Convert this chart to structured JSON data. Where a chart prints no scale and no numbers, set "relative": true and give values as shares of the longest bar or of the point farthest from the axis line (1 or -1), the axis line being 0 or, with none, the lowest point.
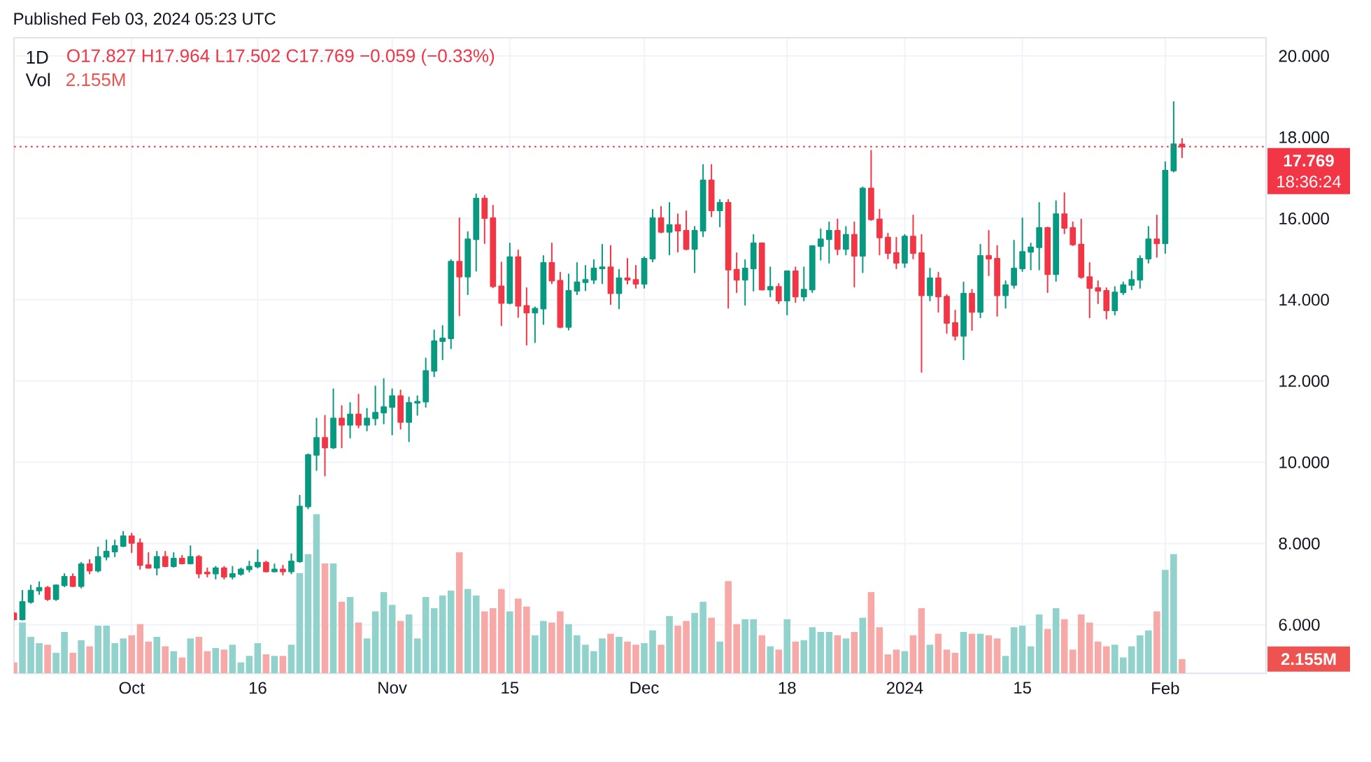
{
  "chart_data": [
    {
      "type": "candlestick",
      "title": "1D",
      "subtitle": "O17.827 H17.964 L17.502 C17.769 −0.059 (−0.33%)",
      "annotations": [
        "Published Feb 03, 2024 05:23 UTC",
        "18:36:24"
      ],
      "x": [
        "2023-09-17",
        "2023-09-18",
        "2023-09-19",
        "2023-09-20",
        "2023-09-21",
        "2023-09-22",
        "2023-09-23",
        "2023-09-24",
        "2023-09-25",
        "2023-09-26",
        "2023-09-27",
        "2023-09-28",
        "2023-09-29",
        "2023-09-30",
        "2023-10-01",
        "2023-10-02",
        "2023-10-03",
        "2023-10-04",
        "2023-10-05",
        "2023-10-06",
        "2023-10-07",
        "2023-10-08",
        "2023-10-09",
        "2023-10-10",
        "2023-10-11",
        "2023-10-12",
        "2023-10-13",
        "2023-10-14",
        "2023-10-15",
        "2023-10-16",
        "2023-10-17",
        "2023-10-18",
        "2023-10-19",
        "2023-10-20",
        "2023-10-21",
        "2023-10-22",
        "2023-10-23",
        "2023-10-24",
        "2023-10-25",
        "2023-10-26",
        "2023-10-27",
        "2023-10-28",
        "2023-10-29",
        "2023-10-30",
        "2023-10-31",
        "2023-11-01",
        "2023-11-02",
        "2023-11-03",
        "2023-11-04",
        "2023-11-05",
        "2023-11-06",
        "2023-11-07",
        "2023-11-08",
        "2023-11-09",
        "2023-11-10",
        "2023-11-11",
        "2023-11-12",
        "2023-11-13",
        "2023-11-14",
        "2023-11-15",
        "2023-11-16",
        "2023-11-17",
        "2023-11-18",
        "2023-11-19",
        "2023-11-20",
        "2023-11-21",
        "2023-11-22",
        "2023-11-23",
        "2023-11-24",
        "2023-11-25",
        "2023-11-26",
        "2023-11-27",
        "2023-11-28",
        "2023-11-29",
        "2023-11-30",
        "2023-12-01",
        "2023-12-02",
        "2023-12-03",
        "2023-12-04",
        "2023-12-05",
        "2023-12-06",
        "2023-12-07",
        "2023-12-08",
        "2023-12-09",
        "2023-12-10",
        "2023-12-11",
        "2023-12-12",
        "2023-12-13",
        "2023-12-14",
        "2023-12-15",
        "2023-12-16",
        "2023-12-17",
        "2023-12-18",
        "2023-12-19",
        "2023-12-20",
        "2023-12-21",
        "2023-12-22",
        "2023-12-23",
        "2023-12-24",
        "2023-12-25",
        "2023-12-26",
        "2023-12-27",
        "2023-12-28",
        "2023-12-29",
        "2023-12-30",
        "2023-12-31",
        "2024-01-01",
        "2024-01-02",
        "2024-01-03",
        "2024-01-04",
        "2024-01-05",
        "2024-01-06",
        "2024-01-07",
        "2024-01-08",
        "2024-01-09",
        "2024-01-10",
        "2024-01-11",
        "2024-01-12",
        "2024-01-13",
        "2024-01-14",
        "2024-01-15",
        "2024-01-16",
        "2024-01-17",
        "2024-01-18",
        "2024-01-19",
        "2024-01-20",
        "2024-01-21",
        "2024-01-22",
        "2024-01-23",
        "2024-01-24",
        "2024-01-25",
        "2024-01-26",
        "2024-01-27",
        "2024-01-28",
        "2024-01-29",
        "2024-01-30",
        "2024-01-31",
        "2024-02-01",
        "2024-02-02",
        "2024-02-03"
      ],
      "ohlc": [
        [
          6.28,
          6.3,
          6.12,
          6.13
        ],
        [
          6.13,
          6.84,
          6.12,
          6.56
        ],
        [
          6.56,
          6.97,
          6.53,
          6.84
        ],
        [
          6.84,
          7.05,
          6.75,
          6.91
        ],
        [
          6.91,
          6.94,
          6.6,
          6.63
        ],
        [
          6.63,
          6.98,
          6.6,
          6.97
        ],
        [
          6.97,
          7.25,
          6.94,
          7.18
        ],
        [
          7.18,
          7.25,
          6.94,
          6.95
        ],
        [
          6.95,
          7.53,
          6.91,
          7.49
        ],
        [
          7.49,
          7.6,
          7.26,
          7.33
        ],
        [
          7.33,
          7.91,
          7.3,
          7.67
        ],
        [
          7.67,
          8.08,
          7.6,
          7.8
        ],
        [
          7.8,
          8.08,
          7.68,
          7.94
        ],
        [
          7.94,
          8.29,
          7.92,
          8.18
        ],
        [
          8.18,
          8.25,
          7.78,
          8.01
        ],
        [
          8.01,
          8.11,
          7.37,
          7.47
        ],
        [
          7.47,
          7.77,
          7.39,
          7.4
        ],
        [
          7.4,
          7.8,
          7.23,
          7.67
        ],
        [
          7.67,
          7.8,
          7.43,
          7.44
        ],
        [
          7.44,
          7.77,
          7.42,
          7.63
        ],
        [
          7.63,
          7.7,
          7.5,
          7.51
        ],
        [
          7.51,
          7.94,
          7.5,
          7.67
        ],
        [
          7.67,
          7.7,
          7.16,
          7.26
        ],
        [
          7.29,
          7.39,
          7.18,
          7.26
        ],
        [
          7.26,
          7.43,
          7.13,
          7.39
        ],
        [
          7.39,
          7.43,
          7.13,
          7.18
        ],
        [
          7.18,
          7.43,
          7.13,
          7.25
        ],
        [
          7.25,
          7.39,
          7.22,
          7.36
        ],
        [
          7.36,
          7.56,
          7.3,
          7.43
        ],
        [
          7.43,
          7.84,
          7.4,
          7.53
        ],
        [
          7.53,
          7.56,
          7.3,
          7.31
        ],
        [
          7.31,
          7.49,
          7.3,
          7.36
        ],
        [
          7.36,
          7.46,
          7.23,
          7.31
        ],
        [
          7.31,
          7.74,
          7.26,
          7.56
        ],
        [
          7.56,
          9.18,
          7.54,
          8.91
        ],
        [
          8.91,
          10.2,
          8.86,
          10.18
        ],
        [
          10.18,
          11.08,
          9.8,
          10.6
        ],
        [
          10.6,
          11.15,
          9.67,
          10.36
        ],
        [
          10.36,
          11.8,
          10.34,
          11.08
        ],
        [
          11.08,
          11.39,
          10.36,
          10.92
        ],
        [
          10.92,
          11.46,
          10.6,
          11.18
        ],
        [
          11.18,
          11.67,
          10.85,
          10.92
        ],
        [
          10.92,
          11.32,
          10.78,
          11.08
        ],
        [
          11.08,
          11.87,
          10.92,
          11.22
        ],
        [
          11.22,
          12.05,
          10.95,
          11.36
        ],
        [
          11.36,
          11.8,
          10.68,
          11.63
        ],
        [
          11.63,
          11.77,
          10.82,
          10.99
        ],
        [
          10.99,
          11.6,
          10.51,
          11.46
        ],
        [
          11.46,
          11.63,
          11.16,
          11.49
        ],
        [
          11.49,
          12.56,
          11.36,
          12.25
        ],
        [
          12.25,
          13.25,
          12.11,
          12.98
        ],
        [
          12.98,
          13.36,
          12.53,
          13.05
        ],
        [
          13.05,
          14.98,
          12.8,
          14.94
        ],
        [
          14.94,
          16.01,
          13.61,
          14.57
        ],
        [
          14.57,
          15.67,
          14.13,
          15.49
        ],
        [
          15.49,
          16.6,
          14.71,
          16.49
        ],
        [
          16.49,
          16.56,
          15.39,
          16.01
        ],
        [
          16.01,
          16.32,
          14.3,
          14.33
        ],
        [
          14.33,
          14.92,
          13.37,
          13.92
        ],
        [
          13.92,
          15.39,
          13.9,
          15.05
        ],
        [
          15.05,
          15.22,
          13.57,
          13.85
        ],
        [
          13.85,
          14.29,
          12.89,
          13.68
        ],
        [
          13.68,
          13.82,
          12.95,
          13.78
        ],
        [
          13.78,
          15.08,
          13.4,
          14.91
        ],
        [
          14.91,
          15.39,
          14.4,
          14.47
        ],
        [
          14.47,
          14.67,
          13.31,
          13.33
        ],
        [
          13.33,
          14.63,
          13.26,
          14.22
        ],
        [
          14.22,
          14.91,
          14.13,
          14.43
        ],
        [
          14.43,
          14.84,
          14.23,
          14.49
        ],
        [
          14.49,
          14.98,
          14.4,
          14.77
        ],
        [
          14.77,
          15.36,
          14.4,
          14.8
        ],
        [
          14.8,
          15.33,
          13.89,
          14.16
        ],
        [
          14.16,
          14.74,
          13.78,
          14.53
        ],
        [
          14.53,
          15.01,
          14.39,
          14.49
        ],
        [
          14.49,
          14.84,
          14.29,
          14.39
        ],
        [
          14.39,
          15.05,
          14.29,
          15.01
        ],
        [
          15.01,
          16.22,
          14.94,
          16.01
        ],
        [
          16.01,
          16.29,
          15.65,
          15.67
        ],
        [
          15.67,
          16.39,
          15.11,
          15.84
        ],
        [
          15.84,
          16.11,
          15.18,
          15.7
        ],
        [
          15.7,
          16.18,
          15.23,
          15.25
        ],
        [
          15.25,
          15.8,
          14.67,
          15.7
        ],
        [
          15.7,
          17.32,
          15.56,
          16.94
        ],
        [
          16.94,
          17.32,
          16.05,
          16.2
        ],
        [
          16.2,
          16.46,
          15.8,
          16.39
        ],
        [
          16.39,
          16.46,
          13.8,
          14.74
        ],
        [
          14.74,
          15.15,
          14.18,
          14.49
        ],
        [
          14.49,
          14.98,
          13.87,
          14.77
        ],
        [
          14.77,
          15.6,
          14.22,
          15.39
        ],
        [
          15.39,
          15.4,
          14.24,
          14.25
        ],
        [
          14.25,
          14.8,
          14.08,
          14.32
        ],
        [
          14.32,
          14.39,
          13.91,
          13.98
        ],
        [
          13.98,
          14.71,
          13.63,
          14.7
        ],
        [
          14.7,
          14.8,
          13.94,
          14.08
        ],
        [
          14.08,
          14.8,
          13.98,
          14.25
        ],
        [
          14.25,
          15.33,
          14.18,
          15.32
        ],
        [
          15.32,
          15.74,
          14.98,
          15.49
        ],
        [
          15.49,
          15.91,
          14.91,
          15.7
        ],
        [
          15.7,
          15.98,
          15.11,
          15.25
        ],
        [
          15.25,
          15.8,
          15.11,
          15.6
        ],
        [
          15.6,
          15.91,
          14.32,
          15.08
        ],
        [
          15.08,
          16.77,
          14.67,
          16.74
        ],
        [
          16.74,
          17.67,
          15.96,
          15.98
        ],
        [
          15.98,
          16.22,
          15.11,
          15.53
        ],
        [
          15.53,
          15.63,
          15.01,
          15.15
        ],
        [
          15.15,
          15.53,
          14.77,
          14.91
        ],
        [
          14.91,
          15.6,
          14.8,
          15.56
        ],
        [
          15.56,
          16.08,
          15.01,
          15.15
        ],
        [
          15.15,
          15.6,
          12.22,
          14.11
        ],
        [
          14.11,
          14.77,
          13.98,
          14.53
        ],
        [
          14.53,
          14.67,
          13.7,
          14.08
        ],
        [
          14.08,
          14.12,
          13.18,
          13.43
        ],
        [
          13.43,
          13.74,
          13.01,
          13.11
        ],
        [
          13.11,
          14.43,
          12.53,
          14.15
        ],
        [
          14.15,
          14.25,
          13.25,
          13.7
        ],
        [
          13.7,
          15.36,
          13.56,
          15.08
        ],
        [
          15.08,
          15.7,
          14.6,
          15.01
        ],
        [
          15.01,
          15.33,
          13.6,
          14.11
        ],
        [
          14.11,
          14.46,
          13.8,
          14.36
        ],
        [
          14.36,
          15.46,
          14.29,
          14.77
        ],
        [
          14.77,
          16.01,
          14.7,
          15.18
        ],
        [
          15.18,
          15.39,
          14.74,
          15.29
        ],
        [
          15.29,
          16.39,
          14.74,
          15.77
        ],
        [
          15.77,
          15.78,
          14.18,
          14.63
        ],
        [
          14.63,
          16.43,
          14.46,
          16.11
        ],
        [
          16.11,
          16.63,
          15.63,
          15.77
        ],
        [
          15.77,
          15.91,
          15.34,
          15.36
        ],
        [
          15.36,
          15.98,
          14.53,
          14.56
        ],
        [
          14.56,
          14.91,
          13.56,
          14.29
        ],
        [
          14.29,
          14.46,
          13.91,
          14.22
        ],
        [
          14.22,
          14.29,
          13.53,
          13.74
        ],
        [
          13.74,
          14.32,
          13.63,
          14.18
        ],
        [
          14.18,
          14.43,
          14.13,
          14.36
        ],
        [
          14.36,
          14.7,
          14.25,
          14.49
        ],
        [
          14.49,
          15.08,
          14.29,
          15.01
        ],
        [
          15.01,
          15.8,
          14.91,
          15.49
        ],
        [
          15.49,
          16.08,
          15.05,
          15.39
        ],
        [
          15.39,
          17.39,
          15.15,
          17.18
        ],
        [
          17.18,
          18.87,
          17.15,
          17.83
        ],
        [
          17.827,
          17.964,
          17.502,
          17.769
        ]
      ],
      "colors": [
        "#f23645",
        "#089981",
        "#089981",
        "#089981",
        "#f23645",
        "#089981",
        "#089981",
        "#f23645",
        "#089981",
        "#f23645",
        "#089981",
        "#089981",
        "#089981",
        "#089981",
        "#f23645",
        "#f23645",
        "#f23645",
        "#089981",
        "#f23645",
        "#089981",
        "#f23645",
        "#089981",
        "#f23645",
        "#f23645",
        "#089981",
        "#f23645",
        "#089981",
        "#089981",
        "#089981",
        "#089981",
        "#f23645",
        "#089981",
        "#f23645",
        "#089981",
        "#089981",
        "#089981",
        "#089981",
        "#f23645",
        "#089981",
        "#f23645",
        "#089981",
        "#f23645",
        "#089981",
        "#089981",
        "#089981",
        "#089981",
        "#f23645",
        "#089981",
        "#089981",
        "#089981",
        "#089981",
        "#089981",
        "#089981",
        "#f23645",
        "#089981",
        "#089981",
        "#f23645",
        "#f23645",
        "#f23645",
        "#089981",
        "#f23645",
        "#f23645",
        "#089981",
        "#089981",
        "#f23645",
        "#f23645",
        "#089981",
        "#089981",
        "#089981",
        "#089981",
        "#089981",
        "#f23645",
        "#089981",
        "#f23645",
        "#f23645",
        "#089981",
        "#089981",
        "#f23645",
        "#089981",
        "#f23645",
        "#f23645",
        "#089981",
        "#089981",
        "#f23645",
        "#089981",
        "#f23645",
        "#f23645",
        "#089981",
        "#089981",
        "#f23645",
        "#089981",
        "#f23645",
        "#089981",
        "#f23645",
        "#089981",
        "#089981",
        "#089981",
        "#089981",
        "#f23645",
        "#089981",
        "#f23645",
        "#089981",
        "#f23645",
        "#f23645",
        "#f23645",
        "#f23645",
        "#089981",
        "#f23645",
        "#f23645",
        "#089981",
        "#f23645",
        "#f23645",
        "#f23645",
        "#089981",
        "#f23645",
        "#089981",
        "#f23645",
        "#f23645",
        "#089981",
        "#089981",
        "#089981",
        "#089981",
        "#089981",
        "#f23645",
        "#089981",
        "#f23645",
        "#f23645",
        "#f23645",
        "#f23645",
        "#f23645",
        "#f23645",
        "#089981",
        "#089981",
        "#089981",
        "#089981",
        "#089981",
        "#f23645",
        "#089981",
        "#089981",
        "#f23645"
      ],
      "xlim": [
        "2023-09-17",
        "2024-02-13"
      ],
      "xticks": [
        {
          "value": "2023-10-01",
          "label": "Oct"
        },
        {
          "value": "2023-10-16",
          "label": "16"
        },
        {
          "value": "2023-11-01",
          "label": "Nov"
        },
        {
          "value": "2023-11-15",
          "label": "15"
        },
        {
          "value": "2023-12-01",
          "label": "Dec"
        },
        {
          "value": "2023-12-18",
          "label": "18"
        },
        {
          "value": "2024-01-01",
          "label": "2024"
        },
        {
          "value": "2024-01-15",
          "label": "15"
        },
        {
          "value": "2024-02-01",
          "label": "Feb"
        }
      ],
      "ylim": [
        4.8,
        20.45
      ],
      "yticks": [
        {
          "value": 6,
          "label": "6.000"
        },
        {
          "value": 8,
          "label": "8.000"
        },
        {
          "value": 10,
          "label": "10.000"
        },
        {
          "value": 12,
          "label": "12.000"
        },
        {
          "value": 14,
          "label": "14.000"
        },
        {
          "value": 16,
          "label": "16.000"
        },
        {
          "value": 18,
          "label": "18.000"
        },
        {
          "value": 20,
          "label": "20.000"
        }
      ],
      "ref_lines": [
        {
          "axis": "y",
          "value": 17.769,
          "label": "17.769",
          "color": "#f23645",
          "line_style": "dotted"
        }
      ],
      "grid": true
    },
    {
      "type": "bar",
      "relative": true,
      "title": "Vol",
      "annotations": [
        "2.155M",
        "2.155M"
      ],
      "x": [
        "2023-09-17",
        "2023-09-18",
        "2023-09-19",
        "2023-09-20",
        "2023-09-21",
        "2023-09-22",
        "2023-09-23",
        "2023-09-24",
        "2023-09-25",
        "2023-09-26",
        "2023-09-27",
        "2023-09-28",
        "2023-09-29",
        "2023-09-30",
        "2023-10-01",
        "2023-10-02",
        "2023-10-03",
        "2023-10-04",
        "2023-10-05",
        "2023-10-06",
        "2023-10-07",
        "2023-10-08",
        "2023-10-09",
        "2023-10-10",
        "2023-10-11",
        "2023-10-12",
        "2023-10-13",
        "2023-10-14",
        "2023-10-15",
        "2023-10-16",
        "2023-10-17",
        "2023-10-18",
        "2023-10-19",
        "2023-10-20",
        "2023-10-21",
        "2023-10-22",
        "2023-10-23",
        "2023-10-24",
        "2023-10-25",
        "2023-10-26",
        "2023-10-27",
        "2023-10-28",
        "2023-10-29",
        "2023-10-30",
        "2023-10-31",
        "2023-11-01",
        "2023-11-02",
        "2023-11-03",
        "2023-11-04",
        "2023-11-05",
        "2023-11-06",
        "2023-11-07",
        "2023-11-08",
        "2023-11-09",
        "2023-11-10",
        "2023-11-11",
        "2023-11-12",
        "2023-11-13",
        "2023-11-14",
        "2023-11-15",
        "2023-11-16",
        "2023-11-17",
        "2023-11-18",
        "2023-11-19",
        "2023-11-20",
        "2023-11-21",
        "2023-11-22",
        "2023-11-23",
        "2023-11-24",
        "2023-11-25",
        "2023-11-26",
        "2023-11-27",
        "2023-11-28",
        "2023-11-29",
        "2023-11-30",
        "2023-12-01",
        "2023-12-02",
        "2023-12-03",
        "2023-12-04",
        "2023-12-05",
        "2023-12-06",
        "2023-12-07",
        "2023-12-08",
        "2023-12-09",
        "2023-12-10",
        "2023-12-11",
        "2023-12-12",
        "2023-12-13",
        "2023-12-14",
        "2023-12-15",
        "2023-12-16",
        "2023-12-17",
        "2023-12-18",
        "2023-12-19",
        "2023-12-20",
        "2023-12-21",
        "2023-12-22",
        "2023-12-23",
        "2023-12-24",
        "2023-12-25",
        "2023-12-26",
        "2023-12-27",
        "2023-12-28",
        "2023-12-29",
        "2023-12-30",
        "2023-12-31",
        "2024-01-01",
        "2024-01-02",
        "2024-01-03",
        "2024-01-04",
        "2024-01-05",
        "2024-01-06",
        "2024-01-07",
        "2024-01-08",
        "2024-01-09",
        "2024-01-10",
        "2024-01-11",
        "2024-01-12",
        "2024-01-13",
        "2024-01-14",
        "2024-01-15",
        "2024-01-16",
        "2024-01-17",
        "2024-01-18",
        "2024-01-19",
        "2024-01-20",
        "2024-01-21",
        "2024-01-22",
        "2024-01-23",
        "2024-01-24",
        "2024-01-25",
        "2024-01-26",
        "2024-01-27",
        "2024-01-28",
        "2024-01-29",
        "2024-01-30",
        "2024-01-31",
        "2024-02-01",
        "2024-02-02",
        "2024-02-03"
      ],
      "values": [
        0.07,
        0.32,
        0.23,
        0.19,
        0.18,
        0.13,
        0.26,
        0.13,
        0.21,
        0.17,
        0.3,
        0.3,
        0.19,
        0.22,
        0.24,
        0.31,
        0.2,
        0.23,
        0.17,
        0.14,
        0.1,
        0.22,
        0.23,
        0.14,
        0.16,
        0.15,
        0.18,
        0.07,
        0.11,
        0.19,
        0.12,
        0.11,
        0.11,
        0.18,
        0.63,
        0.75,
        1,
        0.69,
        0.69,
        0.45,
        0.48,
        0.32,
        0.22,
        0.39,
        0.51,
        0.43,
        0.33,
        0.37,
        0.22,
        0.48,
        0.41,
        0.49,
        0.52,
        0.76,
        0.53,
        0.49,
        0.39,
        0.41,
        0.53,
        0.39,
        0.47,
        0.42,
        0.24,
        0.33,
        0.32,
        0.39,
        0.31,
        0.24,
        0.18,
        0.14,
        0.22,
        0.25,
        0.23,
        0.2,
        0.18,
        0.19,
        0.27,
        0.18,
        0.36,
        0.3,
        0.33,
        0.38,
        0.45,
        0.35,
        0.2,
        0.58,
        0.31,
        0.34,
        0.34,
        0.24,
        0.17,
        0.15,
        0.34,
        0.2,
        0.21,
        0.29,
        0.26,
        0.26,
        0.24,
        0.22,
        0.26,
        0.35,
        0.51,
        0.29,
        0.12,
        0.15,
        0.14,
        0.24,
        0.41,
        0.18,
        0.25,
        0.15,
        0.13,
        0.26,
        0.25,
        0.25,
        0.24,
        0.22,
        0.11,
        0.29,
        0.3,
        0.17,
        0.37,
        0.28,
        0.41,
        0.34,
        0.15,
        0.37,
        0.32,
        0.2,
        0.17,
        0.18,
        0.1,
        0.17,
        0.24,
        0.27,
        0.39,
        0.65,
        0.75,
        0.09
      ],
      "colors": [
        "#f7a9a7",
        "#92d2cc",
        "#92d2cc",
        "#92d2cc",
        "#f7a9a7",
        "#92d2cc",
        "#92d2cc",
        "#f7a9a7",
        "#92d2cc",
        "#f7a9a7",
        "#92d2cc",
        "#92d2cc",
        "#92d2cc",
        "#92d2cc",
        "#f7a9a7",
        "#f7a9a7",
        "#f7a9a7",
        "#92d2cc",
        "#f7a9a7",
        "#92d2cc",
        "#f7a9a7",
        "#92d2cc",
        "#f7a9a7",
        "#f7a9a7",
        "#92d2cc",
        "#f7a9a7",
        "#92d2cc",
        "#92d2cc",
        "#92d2cc",
        "#92d2cc",
        "#f7a9a7",
        "#92d2cc",
        "#f7a9a7",
        "#92d2cc",
        "#92d2cc",
        "#92d2cc",
        "#92d2cc",
        "#f7a9a7",
        "#92d2cc",
        "#f7a9a7",
        "#92d2cc",
        "#f7a9a7",
        "#92d2cc",
        "#92d2cc",
        "#92d2cc",
        "#92d2cc",
        "#f7a9a7",
        "#92d2cc",
        "#92d2cc",
        "#92d2cc",
        "#92d2cc",
        "#92d2cc",
        "#92d2cc",
        "#f7a9a7",
        "#92d2cc",
        "#92d2cc",
        "#f7a9a7",
        "#f7a9a7",
        "#f7a9a7",
        "#92d2cc",
        "#f7a9a7",
        "#f7a9a7",
        "#92d2cc",
        "#92d2cc",
        "#f7a9a7",
        "#f7a9a7",
        "#92d2cc",
        "#92d2cc",
        "#92d2cc",
        "#92d2cc",
        "#92d2cc",
        "#f7a9a7",
        "#92d2cc",
        "#f7a9a7",
        "#f7a9a7",
        "#92d2cc",
        "#92d2cc",
        "#f7a9a7",
        "#92d2cc",
        "#f7a9a7",
        "#f7a9a7",
        "#92d2cc",
        "#92d2cc",
        "#f7a9a7",
        "#92d2cc",
        "#f7a9a7",
        "#f7a9a7",
        "#92d2cc",
        "#92d2cc",
        "#f7a9a7",
        "#92d2cc",
        "#f7a9a7",
        "#92d2cc",
        "#f7a9a7",
        "#92d2cc",
        "#92d2cc",
        "#92d2cc",
        "#92d2cc",
        "#f7a9a7",
        "#92d2cc",
        "#f7a9a7",
        "#92d2cc",
        "#f7a9a7",
        "#f7a9a7",
        "#f7a9a7",
        "#f7a9a7",
        "#92d2cc",
        "#f7a9a7",
        "#f7a9a7",
        "#92d2cc",
        "#f7a9a7",
        "#f7a9a7",
        "#f7a9a7",
        "#92d2cc",
        "#f7a9a7",
        "#92d2cc",
        "#f7a9a7",
        "#f7a9a7",
        "#92d2cc",
        "#92d2cc",
        "#92d2cc",
        "#92d2cc",
        "#92d2cc",
        "#f7a9a7",
        "#92d2cc",
        "#f7a9a7",
        "#f7a9a7",
        "#f7a9a7",
        "#f7a9a7",
        "#f7a9a7",
        "#f7a9a7",
        "#92d2cc",
        "#92d2cc",
        "#92d2cc",
        "#92d2cc",
        "#92d2cc",
        "#f7a9a7",
        "#92d2cc",
        "#92d2cc",
        "#f7a9a7"
      ],
      "xlim": [
        "2023-09-17",
        "2024-02-13"
      ],
      "tick_labels": false
    }
  ]
}
